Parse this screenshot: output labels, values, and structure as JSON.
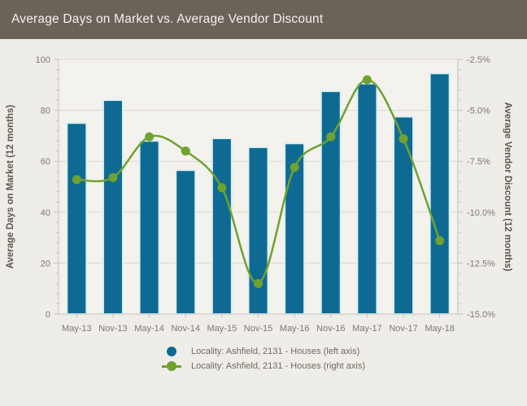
{
  "header": {
    "title": "Average Days on Market vs. Average Vendor Discount"
  },
  "colors": {
    "header_bg": "#6B635A",
    "title_text": "#F4F1EB",
    "background": "#EFEDE8",
    "plot_bg": "#F4F2ED",
    "bar": "#0F6A93",
    "bar_edge": "#D9EFF3",
    "line": "#6FA22F",
    "grid": "#DBD7D0",
    "axis": "#C6C2BA",
    "tick_label": "#7D7871",
    "axis_title": "#5D574F",
    "legend_text": "#6F6A62"
  },
  "chart_data": {
    "type": "bar+line",
    "title": "Average Days on Market vs. Average Vendor Discount",
    "categories": [
      "May-13",
      "Nov-13",
      "May-14",
      "Nov-14",
      "May-15",
      "Nov-15",
      "May-16",
      "Nov-16",
      "May-17",
      "Nov-17",
      "May-18"
    ],
    "series": [
      {
        "name": "Locality: Ashfield, 2131 - Houses (left axis)",
        "type": "bar",
        "axis": "left",
        "values": [
          75,
          84,
          68,
          56.5,
          69,
          65.5,
          67,
          87.5,
          90.5,
          77.5,
          94.5
        ]
      },
      {
        "name": "Locality: Ashfield, 2131 - Houses (right axis)",
        "type": "line",
        "axis": "right",
        "values": [
          -8.4,
          -8.3,
          -6.3,
          -7.0,
          -8.8,
          -13.5,
          -7.8,
          -6.3,
          -3.5,
          -6.4,
          -11.4
        ]
      }
    ],
    "left_axis": {
      "label": "Average Days on Market (12 months)",
      "min": 0,
      "max": 100,
      "ticks": [
        "0",
        "20",
        "40",
        "60",
        "80",
        "100"
      ],
      "tick_values": [
        0,
        20,
        40,
        60,
        80,
        100
      ],
      "minor_step": 4
    },
    "right_axis": {
      "label": "Average Vendor Discount (12 months)",
      "min": -15,
      "max": -2.5,
      "ticks": [
        "-2.5%",
        "-5.0%",
        "-7.5%",
        "-10.0%",
        "-12.5%",
        "-15.0%"
      ],
      "tick_values": [
        -2.5,
        -5,
        -7.5,
        -10,
        -12.5,
        -15
      ],
      "minor_step": 0.5
    },
    "grid": "horizontal",
    "legend_position": "bottom"
  }
}
